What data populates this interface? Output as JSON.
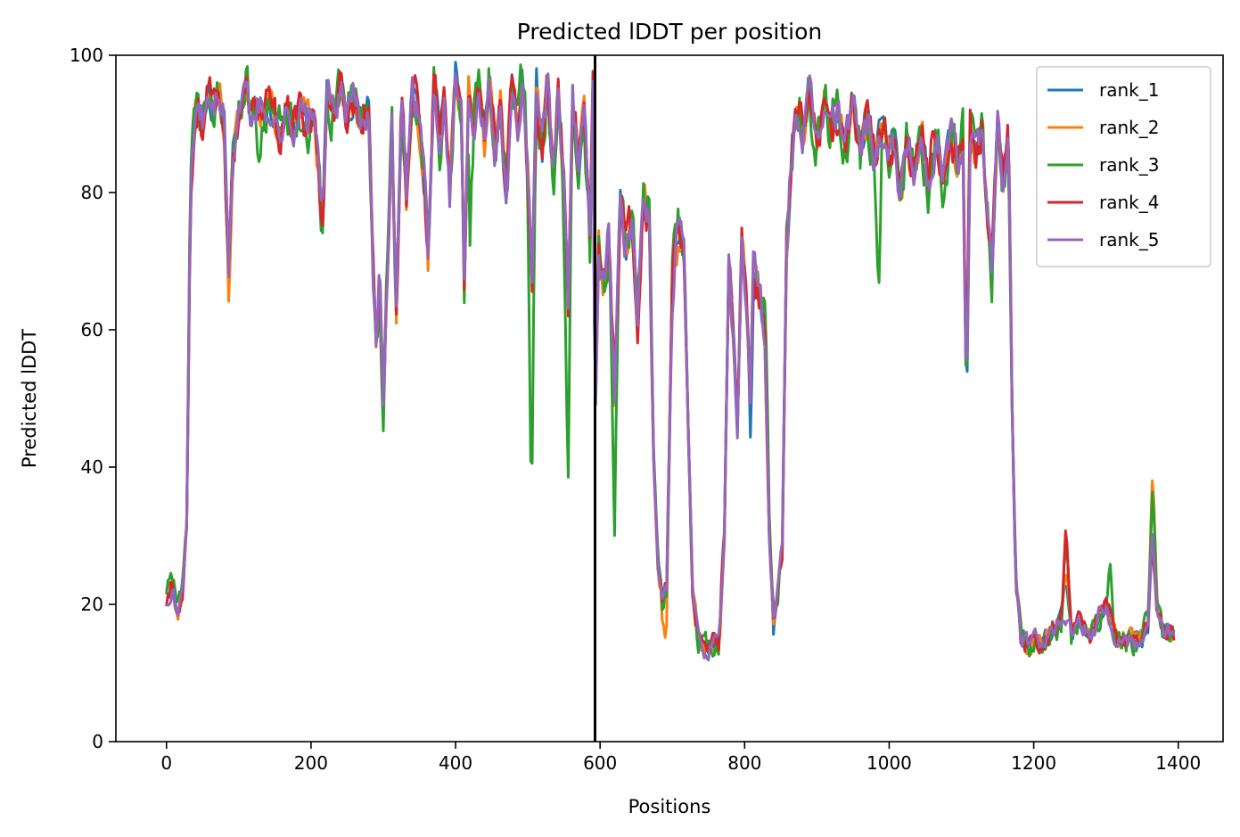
{
  "chart_data": {
    "type": "line",
    "title": "Predicted lDDT per position",
    "xlabel": "Positions",
    "ylabel": "Predicted lDDT",
    "xlim": [
      -70,
      1462
    ],
    "ylim": [
      0,
      100
    ],
    "x_ticks": [
      0,
      200,
      400,
      600,
      800,
      1000,
      1200,
      1400
    ],
    "y_ticks": [
      0,
      20,
      40,
      60,
      80,
      100
    ],
    "grid": false,
    "legend_position": "top-right",
    "vline": {
      "x": 593,
      "color": "#000000"
    },
    "series": [
      {
        "name": "rank_1",
        "color": "#1f77b4",
        "jitter_seed": 11,
        "amp": 1.0,
        "offsets": [
          [
            1110,
            -5
          ],
          [
            810,
            -8
          ],
          [
            840,
            -2
          ],
          [
            1350,
            -2
          ],
          [
            250,
            -1
          ]
        ]
      },
      {
        "name": "rank_2",
        "color": "#ff7f0e",
        "jitter_seed": 23,
        "amp": 1.1,
        "offsets": [
          [
            1365,
            10
          ],
          [
            88,
            -6
          ],
          [
            690,
            -4
          ],
          [
            1000,
            2
          ],
          [
            690,
            -3
          ]
        ]
      },
      {
        "name": "rank_3",
        "color": "#2ca02c",
        "jitter_seed": 37,
        "amp": 1.8,
        "offsets": [
          [
            60,
            -6
          ],
          [
            130,
            -7
          ],
          [
            300,
            -5
          ],
          [
            505,
            -35
          ],
          [
            555,
            -30
          ],
          [
            620,
            -20
          ],
          [
            1245,
            6
          ],
          [
            1305,
            8
          ],
          [
            985,
            -22
          ],
          [
            830,
            10
          ],
          [
            1365,
            6
          ],
          [
            420,
            -20
          ]
        ]
      },
      {
        "name": "rank_4",
        "color": "#d62728",
        "jitter_seed": 53,
        "amp": 1.3,
        "offsets": [
          [
            1060,
            4
          ],
          [
            1110,
            5
          ],
          [
            1245,
            8
          ],
          [
            620,
            4
          ],
          [
            770,
            3
          ],
          [
            1000,
            1
          ]
        ]
      },
      {
        "name": "rank_5",
        "color": "#9467bd",
        "jitter_seed": 71,
        "amp": 1.2,
        "offsets": [
          [
            1245,
            -6
          ],
          [
            1290,
            2
          ],
          [
            700,
            -3
          ],
          [
            980,
            -2
          ],
          [
            880,
            -1
          ]
        ]
      }
    ],
    "base_profile": [
      [
        0,
        21
      ],
      [
        8,
        23
      ],
      [
        15,
        18
      ],
      [
        22,
        22
      ],
      [
        28,
        32
      ],
      [
        33,
        78
      ],
      [
        38,
        88
      ],
      [
        43,
        93
      ],
      [
        50,
        90
      ],
      [
        58,
        94
      ],
      [
        65,
        92
      ],
      [
        72,
        95
      ],
      [
        80,
        90
      ],
      [
        86,
        68
      ],
      [
        92,
        85
      ],
      [
        100,
        92
      ],
      [
        110,
        95
      ],
      [
        118,
        90
      ],
      [
        125,
        93
      ],
      [
        135,
        91
      ],
      [
        145,
        93
      ],
      [
        155,
        88
      ],
      [
        165,
        91
      ],
      [
        175,
        90
      ],
      [
        185,
        92
      ],
      [
        195,
        90
      ],
      [
        205,
        92
      ],
      [
        215,
        75
      ],
      [
        222,
        94
      ],
      [
        232,
        92
      ],
      [
        240,
        95
      ],
      [
        250,
        91
      ],
      [
        260,
        94
      ],
      [
        270,
        90
      ],
      [
        280,
        93
      ],
      [
        286,
        70
      ],
      [
        290,
        58
      ],
      [
        295,
        68
      ],
      [
        300,
        50
      ],
      [
        305,
        66
      ],
      [
        312,
        90
      ],
      [
        318,
        62
      ],
      [
        325,
        93
      ],
      [
        332,
        80
      ],
      [
        340,
        96
      ],
      [
        348,
        92
      ],
      [
        355,
        85
      ],
      [
        362,
        70
      ],
      [
        370,
        96
      ],
      [
        378,
        88
      ],
      [
        385,
        95
      ],
      [
        392,
        80
      ],
      [
        400,
        97
      ],
      [
        408,
        92
      ],
      [
        412,
        66
      ],
      [
        418,
        96
      ],
      [
        425,
        90
      ],
      [
        432,
        97
      ],
      [
        440,
        88
      ],
      [
        447,
        97
      ],
      [
        455,
        85
      ],
      [
        462,
        94
      ],
      [
        470,
        80
      ],
      [
        478,
        96
      ],
      [
        485,
        88
      ],
      [
        492,
        96
      ],
      [
        500,
        84
      ],
      [
        506,
        68
      ],
      [
        512,
        95
      ],
      [
        520,
        86
      ],
      [
        527,
        96
      ],
      [
        535,
        82
      ],
      [
        542,
        95
      ],
      [
        550,
        80
      ],
      [
        556,
        64
      ],
      [
        562,
        94
      ],
      [
        570,
        84
      ],
      [
        578,
        94
      ],
      [
        586,
        72
      ],
      [
        590,
        95
      ],
      [
        593,
        45
      ],
      [
        598,
        72
      ],
      [
        605,
        66
      ],
      [
        612,
        75
      ],
      [
        620,
        50
      ],
      [
        628,
        80
      ],
      [
        636,
        72
      ],
      [
        645,
        76
      ],
      [
        652,
        62
      ],
      [
        660,
        80
      ],
      [
        668,
        75
      ],
      [
        674,
        42
      ],
      [
        680,
        26
      ],
      [
        686,
        20
      ],
      [
        692,
        22
      ],
      [
        700,
        68
      ],
      [
        708,
        74
      ],
      [
        716,
        72
      ],
      [
        722,
        45
      ],
      [
        728,
        22
      ],
      [
        736,
        15
      ],
      [
        745,
        13
      ],
      [
        755,
        14
      ],
      [
        765,
        14
      ],
      [
        772,
        30
      ],
      [
        778,
        70
      ],
      [
        785,
        58
      ],
      [
        790,
        45
      ],
      [
        796,
        72
      ],
      [
        802,
        65
      ],
      [
        808,
        50
      ],
      [
        812,
        70
      ],
      [
        820,
        66
      ],
      [
        828,
        58
      ],
      [
        834,
        30
      ],
      [
        840,
        18
      ],
      [
        846,
        22
      ],
      [
        852,
        28
      ],
      [
        858,
        72
      ],
      [
        865,
        86
      ],
      [
        872,
        92
      ],
      [
        880,
        89
      ],
      [
        890,
        93
      ],
      [
        900,
        87
      ],
      [
        910,
        93
      ],
      [
        920,
        90
      ],
      [
        930,
        92
      ],
      [
        940,
        88
      ],
      [
        950,
        94
      ],
      [
        960,
        86
      ],
      [
        970,
        91
      ],
      [
        980,
        85
      ],
      [
        990,
        90
      ],
      [
        1000,
        86
      ],
      [
        1008,
        88
      ],
      [
        1015,
        80
      ],
      [
        1025,
        87
      ],
      [
        1035,
        83
      ],
      [
        1045,
        89
      ],
      [
        1055,
        80
      ],
      [
        1065,
        88
      ],
      [
        1075,
        82
      ],
      [
        1085,
        90
      ],
      [
        1095,
        84
      ],
      [
        1102,
        88
      ],
      [
        1107,
        48
      ],
      [
        1112,
        88
      ],
      [
        1120,
        85
      ],
      [
        1128,
        90
      ],
      [
        1135,
        78
      ],
      [
        1142,
        68
      ],
      [
        1150,
        89
      ],
      [
        1158,
        80
      ],
      [
        1165,
        89
      ],
      [
        1170,
        50
      ],
      [
        1175,
        24
      ],
      [
        1182,
        15
      ],
      [
        1195,
        14
      ],
      [
        1210,
        15
      ],
      [
        1225,
        16
      ],
      [
        1238,
        18
      ],
      [
        1245,
        24
      ],
      [
        1252,
        16
      ],
      [
        1265,
        18
      ],
      [
        1278,
        15
      ],
      [
        1290,
        18
      ],
      [
        1298,
        20
      ],
      [
        1305,
        18
      ],
      [
        1315,
        15
      ],
      [
        1330,
        15
      ],
      [
        1345,
        15
      ],
      [
        1358,
        17
      ],
      [
        1364,
        30
      ],
      [
        1370,
        20
      ],
      [
        1378,
        16
      ],
      [
        1390,
        16
      ],
      [
        1395,
        15
      ]
    ]
  }
}
